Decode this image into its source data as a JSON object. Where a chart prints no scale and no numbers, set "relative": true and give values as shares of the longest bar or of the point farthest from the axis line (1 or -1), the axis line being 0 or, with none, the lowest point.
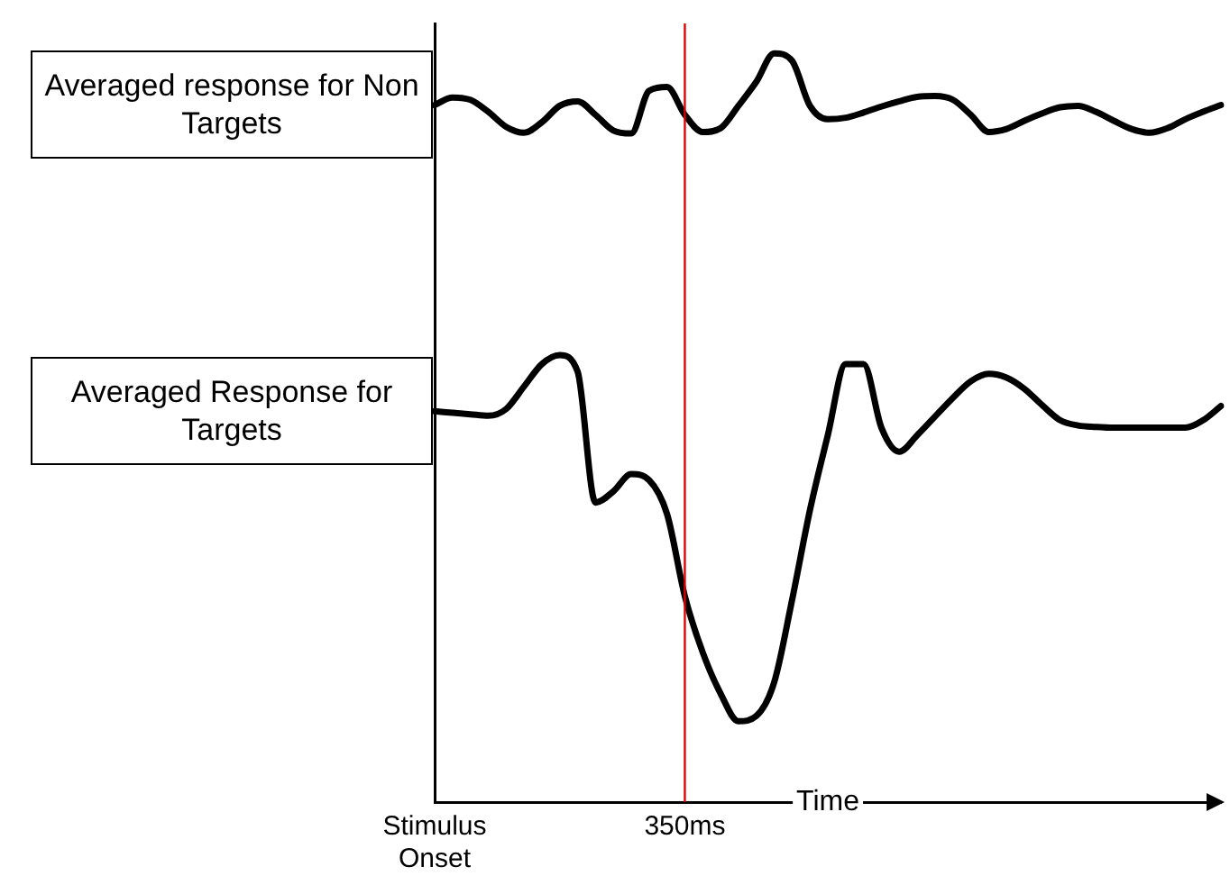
{
  "chart_data": {
    "type": "line",
    "xlabel": "Time",
    "relative": true,
    "legend": false,
    "marker": "none",
    "line_style": "solid",
    "categories": [
      "Stimulus Onset",
      null,
      null,
      null,
      null,
      null,
      null,
      null,
      null,
      null,
      null,
      null,
      null,
      null,
      "350ms",
      null,
      null,
      null,
      null,
      null,
      null,
      null,
      null,
      null,
      null,
      null,
      null,
      null,
      null,
      null,
      null,
      null,
      null,
      null,
      null,
      null,
      null,
      null,
      null,
      null,
      null,
      null,
      null,
      null,
      null
    ],
    "ref_lines": [
      {
        "axis": "x",
        "value": "350ms",
        "color": "#e00000"
      }
    ],
    "series": [
      {
        "name": "Averaged response for Non Targets",
        "color": "#000000",
        "values": [
          0.931,
          0.941,
          0.938,
          0.922,
          0.902,
          0.894,
          0.908,
          0.93,
          0.936,
          0.918,
          0.897,
          0.893,
          0.95,
          0.955,
          0.918,
          0.895,
          0.9,
          0.93,
          0.962,
          1.0,
          0.99,
          0.93,
          0.912,
          0.914,
          0.921,
          0.929,
          0.936,
          0.942,
          0.943,
          0.938,
          0.918,
          0.895,
          0.899,
          0.91,
          0.92,
          0.928,
          0.93,
          0.922,
          0.91,
          0.899,
          0.894,
          0.9,
          0.912,
          0.922,
          0.931
        ]
      },
      {
        "name": "Averaged Response for Targets",
        "color": "#000000",
        "values": [
          0.522,
          0.52,
          0.518,
          0.516,
          0.525,
          0.555,
          0.585,
          0.597,
          0.575,
          0.4,
          0.415,
          0.438,
          0.43,
          0.385,
          0.275,
          0.2,
          0.145,
          0.108,
          0.115,
          0.16,
          0.27,
          0.39,
          0.49,
          0.585,
          0.585,
          0.5,
          0.468,
          0.49,
          0.515,
          0.54,
          0.562,
          0.572,
          0.567,
          0.552,
          0.53,
          0.51,
          0.503,
          0.501,
          0.5,
          0.5,
          0.5,
          0.5,
          0.5,
          0.51,
          0.529
        ]
      }
    ]
  }
}
